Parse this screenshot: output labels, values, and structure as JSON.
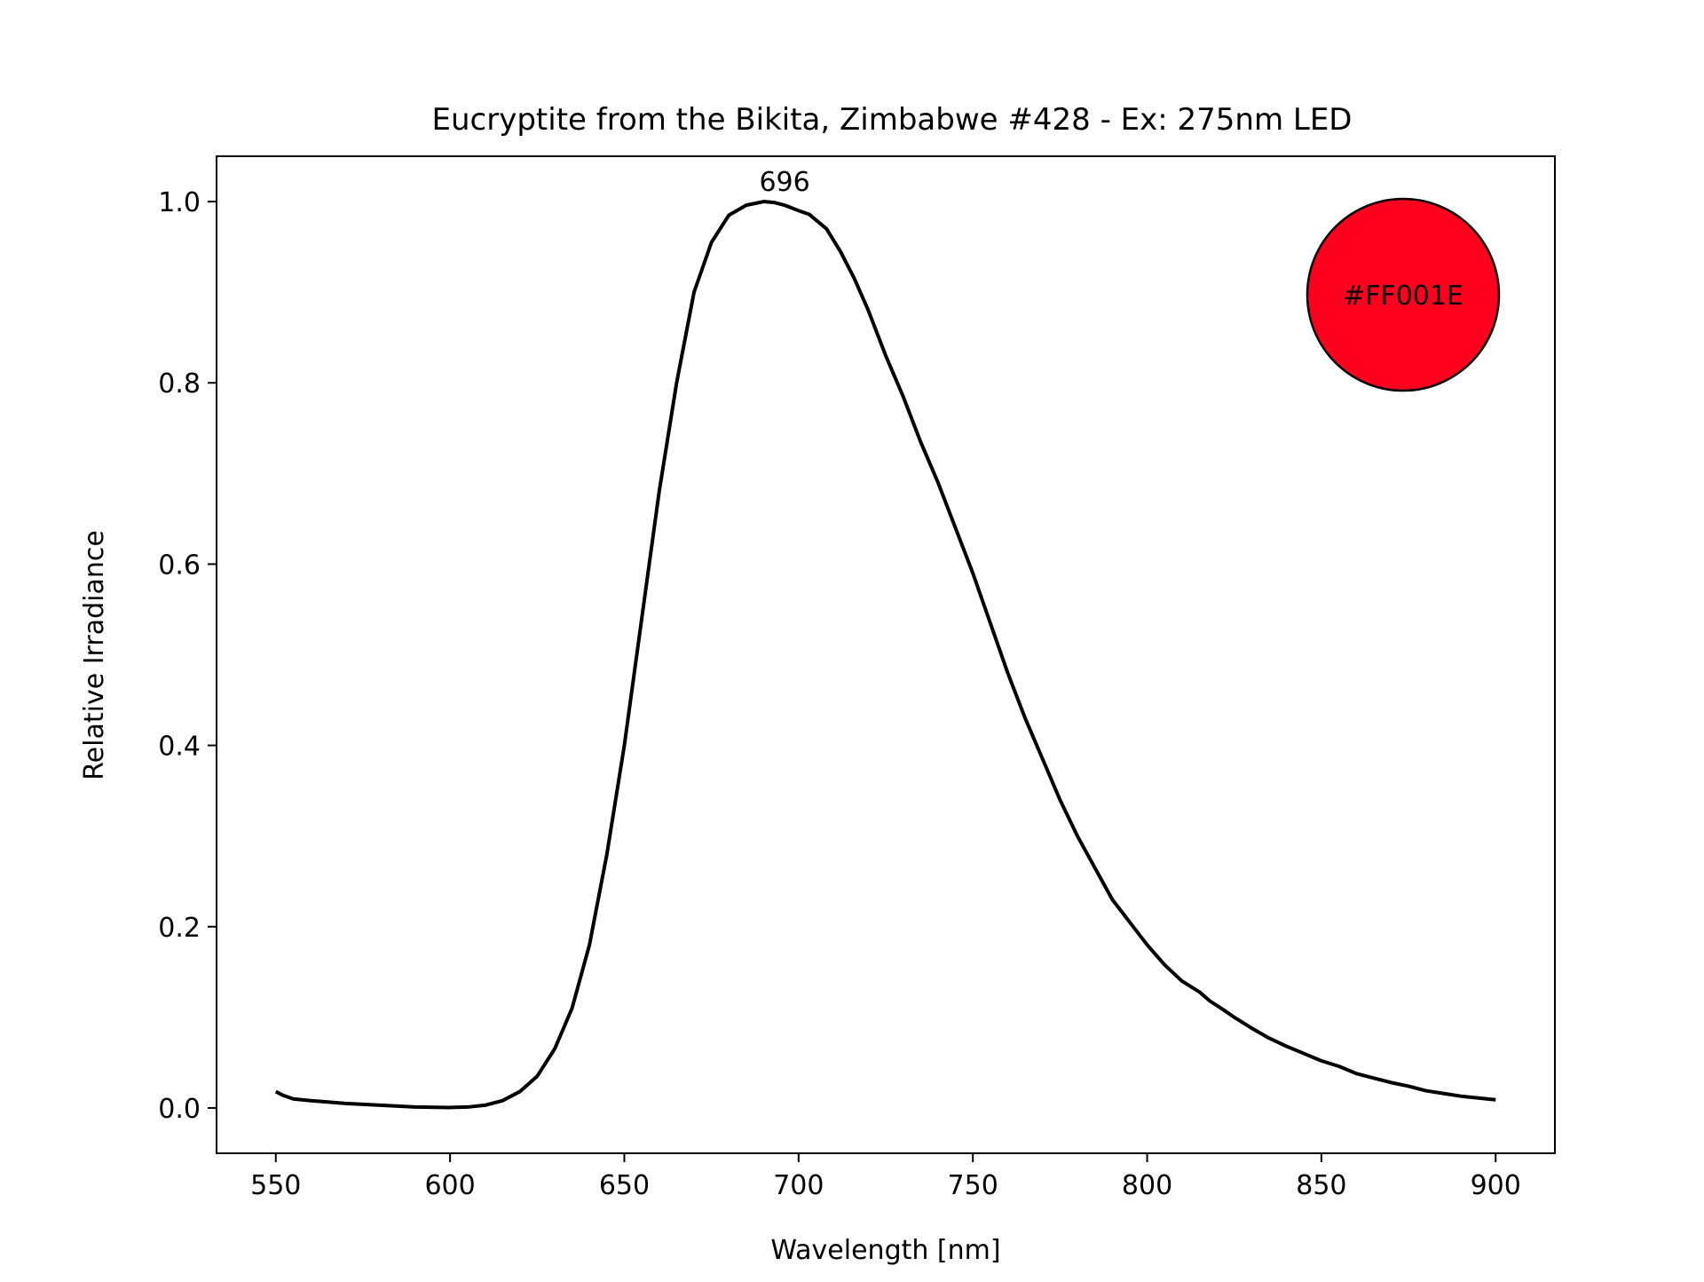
{
  "chart_data": {
    "type": "line",
    "title": "Eucryptite from the Bikita, Zimbabwe #428 - Ex: 275nm LED",
    "xlabel": "Wavelength [nm]",
    "ylabel": "Relative Irradiance",
    "xlim": [
      533,
      917
    ],
    "ylim": [
      -0.05,
      1.05
    ],
    "xticks": [
      550,
      600,
      650,
      700,
      750,
      800,
      850,
      900
    ],
    "xtick_labels": [
      "550",
      "600",
      "650",
      "700",
      "750",
      "800",
      "850",
      "900"
    ],
    "yticks": [
      0.0,
      0.2,
      0.4,
      0.6,
      0.8,
      1.0
    ],
    "ytick_labels": [
      "0.0",
      "0.2",
      "0.4",
      "0.6",
      "0.8",
      "1.0"
    ],
    "grid": false,
    "series": [
      {
        "color": "#000000",
        "x": [
          550,
          552,
          555,
          560,
          570,
          580,
          590,
          600,
          605,
          610,
          615,
          620,
          625,
          630,
          635,
          640,
          645,
          650,
          655,
          660,
          665,
          670,
          675,
          680,
          685,
          690,
          693,
          696,
          700,
          703,
          708,
          712,
          716,
          720,
          725,
          730,
          735,
          740,
          745,
          750,
          755,
          760,
          765,
          770,
          775,
          780,
          785,
          790,
          795,
          800,
          805,
          810,
          815,
          818,
          822,
          825,
          830,
          835,
          840,
          845,
          850,
          855,
          860,
          865,
          870,
          875,
          880,
          885,
          890,
          895,
          900
        ],
        "y": [
          0.018,
          0.014,
          0.01,
          0.008,
          0.005,
          0.003,
          0.001,
          0.0005,
          0.001,
          0.003,
          0.008,
          0.018,
          0.035,
          0.065,
          0.11,
          0.18,
          0.28,
          0.4,
          0.54,
          0.68,
          0.8,
          0.9,
          0.955,
          0.985,
          0.996,
          1.0,
          0.999,
          0.996,
          0.99,
          0.986,
          0.97,
          0.945,
          0.915,
          0.88,
          0.83,
          0.785,
          0.735,
          0.69,
          0.64,
          0.59,
          0.535,
          0.48,
          0.43,
          0.385,
          0.34,
          0.3,
          0.265,
          0.23,
          0.205,
          0.18,
          0.158,
          0.14,
          0.128,
          0.118,
          0.108,
          0.1,
          0.088,
          0.077,
          0.068,
          0.06,
          0.052,
          0.046,
          0.038,
          0.033,
          0.028,
          0.024,
          0.019,
          0.016,
          0.013,
          0.011,
          0.009
        ]
      }
    ],
    "annotations": [
      {
        "text": "696",
        "x": 696,
        "y": 1.0
      }
    ],
    "color_swatch": {
      "text": "#FF001E",
      "color": "#FF001E"
    }
  }
}
